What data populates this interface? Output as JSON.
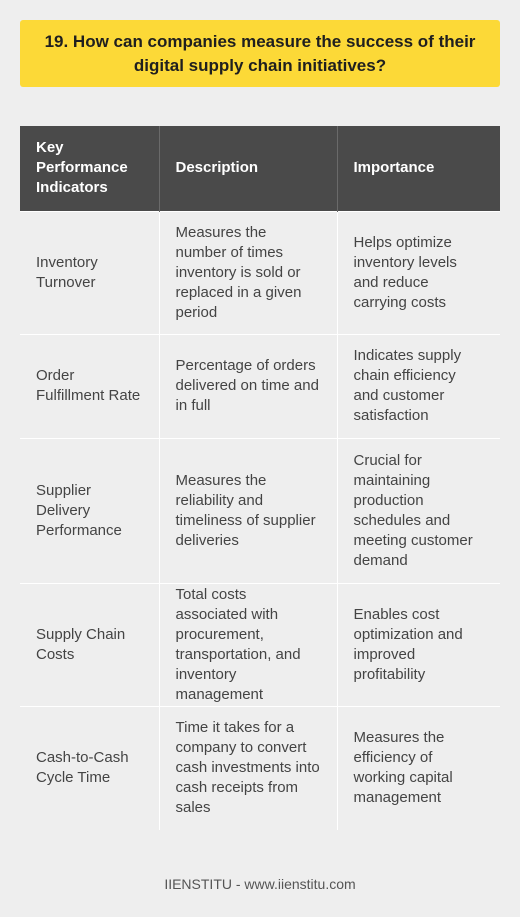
{
  "title": "19. How can companies measure the success of their digital supply chain initiatives?",
  "table": {
    "headers": [
      "Key Performance Indicators",
      "Description",
      "Importance"
    ],
    "rows": [
      {
        "kpi": "Inventory Turnover",
        "description": "Measures the number of times inventory is sold or replaced in a given period",
        "importance": "Helps optimize inventory levels and reduce carrying costs"
      },
      {
        "kpi": "Order Fulfillment Rate",
        "description": "Percentage of orders delivered on time and in full",
        "importance": "Indicates supply chain efficiency and customer satisfaction"
      },
      {
        "kpi": "Supplier Delivery Performance",
        "description": "Measures the reliability and timeliness of supplier deliveries",
        "importance": "Crucial for maintaining production schedules and meeting customer demand"
      },
      {
        "kpi": "Supply Chain Costs",
        "description": "Total costs associated with procurement, transportation, and inventory management",
        "importance": "Enables cost optimization and improved profitability"
      },
      {
        "kpi": "Cash-to-Cash Cycle Time",
        "description": "Time it takes for a company to convert cash investments into cash receipts from sales",
        "importance": "Measures the efficiency of working capital management"
      }
    ]
  },
  "footer": "IIENSTITU - www.iienstitu.com",
  "colors": {
    "banner": "#fcd937",
    "header_bg": "#4a4a4a",
    "background": "#eeeeee"
  }
}
